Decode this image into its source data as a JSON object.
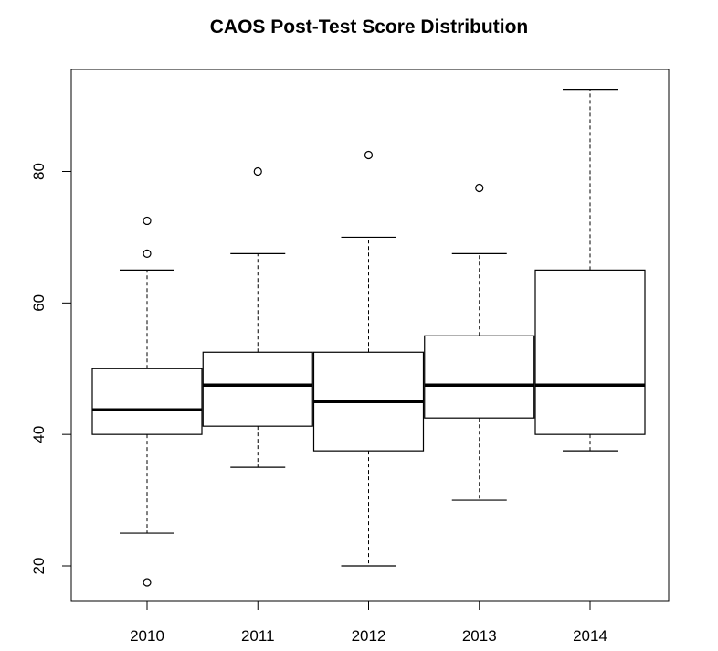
{
  "chart_data": {
    "type": "boxplot",
    "title": "CAOS Post-Test Score Distribution",
    "xlabel": "",
    "ylabel": "",
    "ylim": [
      15,
      95
    ],
    "yticks": [
      20,
      40,
      60,
      80
    ],
    "grid": false,
    "categories": [
      "2010",
      "2011",
      "2012",
      "2013",
      "2014"
    ],
    "boxes": [
      {
        "category": "2010",
        "whisker_low": 25,
        "q1": 40,
        "median": 43.75,
        "q3": 50,
        "whisker_high": 65,
        "outliers": [
          72.5,
          67.5,
          17.5
        ]
      },
      {
        "category": "2011",
        "whisker_low": 35,
        "q1": 41.25,
        "median": 47.5,
        "q3": 52.5,
        "whisker_high": 67.5,
        "outliers": [
          80
        ]
      },
      {
        "category": "2012",
        "whisker_low": 20,
        "q1": 37.5,
        "median": 45,
        "q3": 52.5,
        "whisker_high": 70,
        "outliers": [
          82.5
        ]
      },
      {
        "category": "2013",
        "whisker_low": 30,
        "q1": 42.5,
        "median": 47.5,
        "q3": 55,
        "whisker_high": 67.5,
        "outliers": [
          77.5
        ]
      },
      {
        "category": "2014",
        "whisker_low": 37.5,
        "q1": 40,
        "median": 47.5,
        "q3": 65,
        "whisker_high": 92.5,
        "outliers": []
      }
    ]
  }
}
